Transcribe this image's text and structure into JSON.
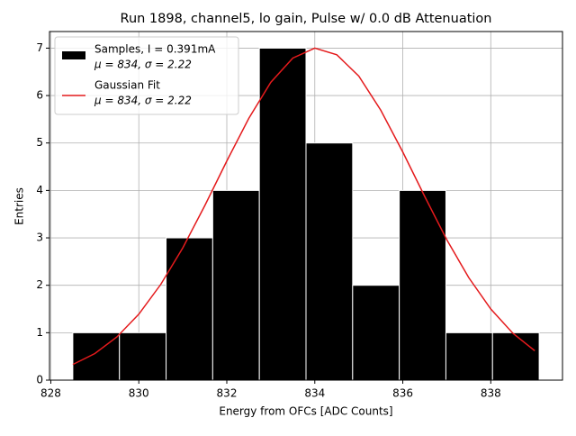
{
  "chart_data": {
    "type": "histogram",
    "title": "Run 1898, channel5, lo gain, Pulse w/ 0.0 dB Attenuation",
    "xlabel": "Energy from OFCs [ADC Counts]",
    "ylabel": "Entries",
    "bins": [
      828.5,
      829.56,
      830.62,
      831.68,
      832.74,
      833.8,
      834.86,
      835.92,
      836.98,
      838.04,
      839.1
    ],
    "counts": [
      1,
      1,
      3,
      4,
      7,
      5,
      2,
      4,
      1,
      1
    ],
    "name": "Samples, I = 0.391mA",
    "stats": "μ = 834, σ = 2.22",
    "color": "#000000",
    "edgecolor": "#ffffff",
    "fit": {
      "type": "line",
      "name": "Gaussian Fit",
      "stats": "μ = 834, σ = 2.22",
      "color": "#e41a1c",
      "x": [
        828.5,
        829.0,
        829.5,
        830.0,
        830.5,
        831.0,
        831.5,
        832.0,
        832.5,
        833.0,
        833.5,
        834.0,
        834.5,
        835.0,
        835.5,
        836.0,
        836.5,
        837.0,
        837.5,
        838.0,
        838.5,
        839.0
      ],
      "values": [
        0.33,
        0.56,
        0.91,
        1.39,
        2.02,
        2.79,
        3.68,
        4.62,
        5.52,
        6.28,
        6.79,
        7.0,
        6.86,
        6.41,
        5.69,
        4.81,
        3.87,
        2.96,
        2.16,
        1.5,
        0.99,
        0.62
      ]
    },
    "xlim": [
      827.97,
      839.63
    ],
    "ylim": [
      0,
      7.35
    ],
    "xticks": [
      828,
      830,
      832,
      834,
      836,
      838
    ],
    "yticks": [
      0,
      1,
      2,
      3,
      4,
      5,
      6,
      7
    ],
    "grid": true,
    "legend": "upper left"
  }
}
